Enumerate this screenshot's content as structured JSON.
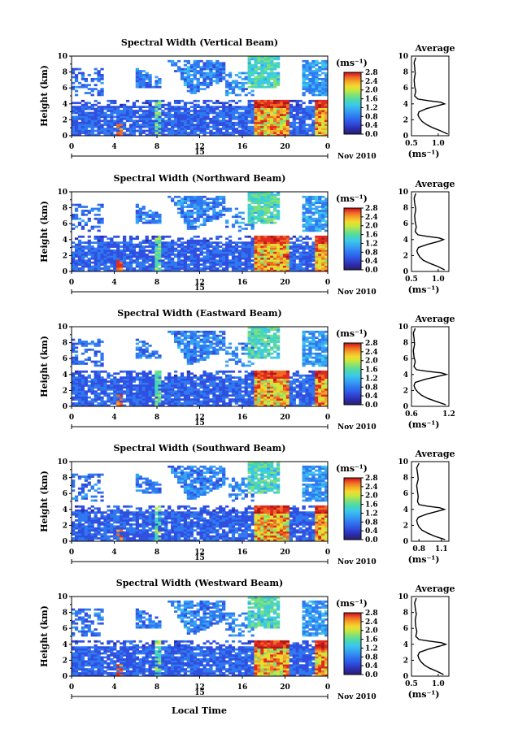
{
  "common": {
    "unit_label": "(ms⁻¹)",
    "avg_title": "Average",
    "ylabel": "Height (km)",
    "avg_xlabel": "(ms⁻¹)",
    "date_label": "Nov 2010",
    "day_label": "15",
    "xlabel": "Local Time",
    "x_ticks": [
      "0",
      "4",
      "8",
      "12",
      "16",
      "20",
      "0"
    ],
    "y_ticks": [
      "0",
      "2",
      "4",
      "6",
      "8",
      "10"
    ],
    "colorbar_ticks": [
      "0.0",
      "0.4",
      "0.8",
      "1.2",
      "1.6",
      "2.0",
      "2.4",
      "2.8"
    ],
    "colors": {
      "scale": [
        "#2a1f6e",
        "#2b2ba8",
        "#2f4fe0",
        "#2f78f0",
        "#36a3f4",
        "#3cc8e8",
        "#4ad8b0",
        "#7fe07a",
        "#c8e83c",
        "#f4d830",
        "#f4a828",
        "#f06a24",
        "#e02a20",
        "#b01818"
      ]
    }
  },
  "chart_data": [
    {
      "type": "heatmap",
      "title": "Spectral Width (Vertical Beam)",
      "xlim": [
        0,
        24
      ],
      "ylim": [
        0,
        10
      ],
      "colorbar_range": [
        0.0,
        2.8
      ],
      "avg_profile": {
        "xlim": [
          0.5,
          1.2
        ],
        "x_ticks": [
          "0.5",
          "1.0"
        ],
        "height": [
          0.2,
          0.6,
          1.0,
          1.4,
          1.8,
          2.2,
          2.6,
          3.0,
          3.4,
          3.8,
          4.0,
          4.2,
          4.4,
          4.6,
          5.0,
          5.6,
          6.2,
          7.0,
          7.8,
          8.6,
          9.2,
          9.8
        ],
        "value": [
          1.18,
          1.05,
          0.9,
          0.78,
          0.7,
          0.65,
          0.62,
          0.64,
          0.78,
          1.0,
          1.12,
          1.05,
          0.82,
          0.62,
          0.56,
          0.58,
          0.56,
          0.55,
          0.57,
          0.56,
          0.55,
          0.58
        ]
      }
    },
    {
      "type": "heatmap",
      "title": "Spectral Width (Northward Beam)",
      "xlim": [
        0,
        24
      ],
      "ylim": [
        0,
        10
      ],
      "colorbar_range": [
        0.0,
        2.8
      ],
      "avg_profile": {
        "xlim": [
          0.5,
          1.2
        ],
        "x_ticks": [
          "0.5",
          "1.0"
        ],
        "height": [
          0.2,
          0.6,
          1.0,
          1.4,
          1.8,
          2.2,
          2.6,
          3.0,
          3.4,
          3.8,
          4.0,
          4.2,
          4.4,
          4.6,
          5.0,
          5.6,
          6.2,
          7.0,
          7.8,
          8.6,
          9.2,
          9.8
        ],
        "value": [
          1.12,
          1.0,
          0.85,
          0.72,
          0.66,
          0.62,
          0.6,
          0.63,
          0.8,
          1.02,
          1.1,
          1.02,
          0.8,
          0.62,
          0.57,
          0.59,
          0.57,
          0.56,
          0.58,
          0.56,
          0.55,
          0.58
        ]
      }
    },
    {
      "type": "heatmap",
      "title": "Spectral Width (Eastward Beam)",
      "xlim": [
        0,
        24
      ],
      "ylim": [
        0,
        10
      ],
      "colorbar_range": [
        0.0,
        2.8
      ],
      "avg_profile": {
        "xlim": [
          0.6,
          1.2
        ],
        "x_ticks": [
          "0.6",
          "1.2"
        ],
        "height": [
          0.2,
          0.6,
          1.0,
          1.4,
          1.8,
          2.2,
          2.6,
          3.0,
          3.4,
          3.8,
          4.0,
          4.2,
          4.4,
          4.6,
          5.0,
          5.6,
          6.2,
          7.0,
          7.8,
          8.6,
          9.2,
          9.8
        ],
        "value": [
          1.15,
          1.0,
          0.86,
          0.76,
          0.7,
          0.66,
          0.64,
          0.66,
          0.82,
          1.04,
          1.16,
          1.08,
          0.86,
          0.68,
          0.64,
          0.66,
          0.64,
          0.63,
          0.65,
          0.64,
          0.63,
          0.66
        ]
      }
    },
    {
      "type": "heatmap",
      "title": "Spectral Width (Southward Beam)",
      "xlim": [
        0,
        24
      ],
      "ylim": [
        0,
        10
      ],
      "colorbar_range": [
        0.0,
        2.8
      ],
      "avg_profile": {
        "xlim": [
          0.7,
          1.2
        ],
        "x_ticks": [
          "0.8",
          "1.1"
        ],
        "height": [
          0.2,
          0.6,
          1.0,
          1.4,
          1.8,
          2.2,
          2.6,
          3.0,
          3.4,
          3.8,
          4.0,
          4.2,
          4.4,
          4.6,
          5.0,
          5.6,
          6.2,
          7.0,
          7.8,
          8.6,
          9.2,
          9.8
        ],
        "value": [
          1.15,
          1.02,
          0.92,
          0.84,
          0.8,
          0.78,
          0.77,
          0.79,
          0.9,
          1.06,
          1.14,
          1.08,
          0.92,
          0.8,
          0.78,
          0.79,
          0.78,
          0.77,
          0.79,
          0.78,
          0.77,
          0.8
        ]
      }
    },
    {
      "type": "heatmap",
      "title": "Spectral Width (Westward Beam)",
      "xlim": [
        0,
        24
      ],
      "ylim": [
        0,
        10
      ],
      "colorbar_range": [
        0.0,
        2.8
      ],
      "avg_profile": {
        "xlim": [
          0.5,
          1.2
        ],
        "x_ticks": [
          "0.5",
          "1.0"
        ],
        "height": [
          0.2,
          0.6,
          1.0,
          1.4,
          1.8,
          2.2,
          2.6,
          3.0,
          3.4,
          3.8,
          4.0,
          4.2,
          4.4,
          4.6,
          5.0,
          5.6,
          6.2,
          7.0,
          7.8,
          8.6,
          9.2,
          9.8
        ],
        "value": [
          1.1,
          0.98,
          0.84,
          0.74,
          0.68,
          0.64,
          0.62,
          0.65,
          0.82,
          1.04,
          1.14,
          1.06,
          0.84,
          0.64,
          0.58,
          0.6,
          0.58,
          0.57,
          0.59,
          0.57,
          0.56,
          0.59
        ]
      }
    }
  ]
}
